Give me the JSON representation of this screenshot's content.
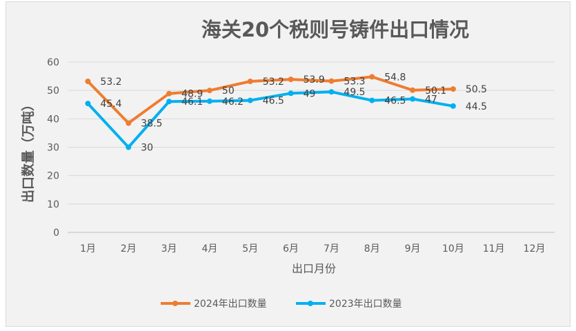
{
  "chart_data": {
    "type": "line",
    "title": "海关20个税则号铸件出口情况",
    "xlabel": "出口月份",
    "ylabel": "出口数量（万吨）",
    "categories": [
      "1月",
      "2月",
      "3月",
      "4月",
      "5月",
      "6月",
      "7月",
      "8月",
      "9月",
      "10月",
      "11月",
      "12月"
    ],
    "ylim": [
      0,
      60
    ],
    "yticks": [
      "0",
      "10",
      "20",
      "30",
      "40",
      "50",
      "60"
    ],
    "grid": true,
    "legend_position": "bottom",
    "series": [
      {
        "name": "2024年出口数量",
        "color": "#ed7d31",
        "values": [
          53.2,
          38.5,
          48.9,
          50,
          53.2,
          53.9,
          53.3,
          54.8,
          50.1,
          50.5,
          null,
          null
        ]
      },
      {
        "name": "2023年出口数量",
        "color": "#00b0f0",
        "values": [
          45.4,
          30,
          46.1,
          46.2,
          46.5,
          49,
          49.5,
          46.5,
          47,
          44.5,
          null,
          null
        ]
      }
    ]
  }
}
